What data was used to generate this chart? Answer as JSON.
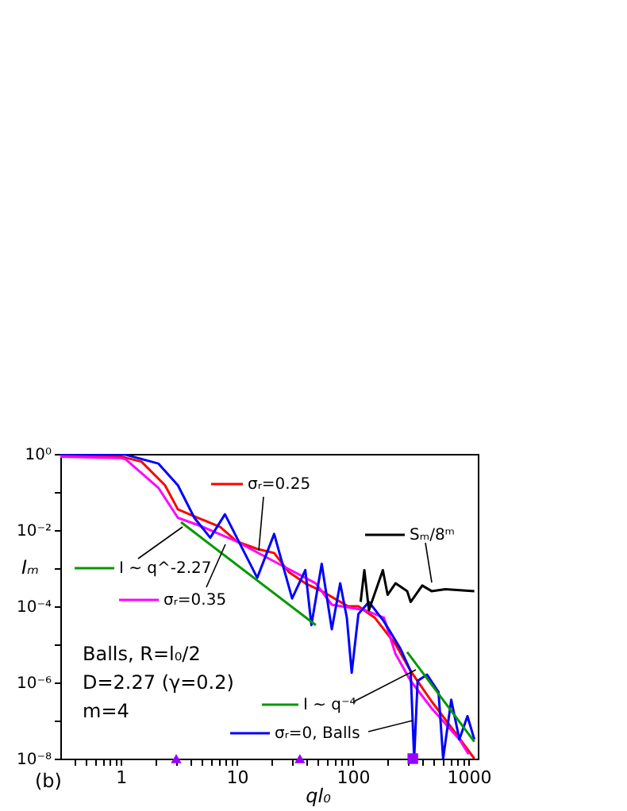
{
  "chart_data": {
    "type": "line",
    "xlabel": "ql₀",
    "ylabel": "Iₘ",
    "log": "xy",
    "grid": false,
    "legend": "left",
    "xlim": [
      0.3,
      1200
    ],
    "ylim": [
      1e-08,
      1
    ],
    "xticks": [
      {
        "value": 0.4,
        "label": null
      },
      {
        "value": 0.5,
        "label": null
      },
      {
        "value": 0.6,
        "label": null
      },
      {
        "value": 0.7,
        "label": null
      },
      {
        "value": 0.8,
        "label": null
      },
      {
        "value": 0.9,
        "label": null
      },
      1,
      {
        "value": 2,
        "label": null
      },
      {
        "value": 3,
        "label": null
      },
      {
        "value": 4,
        "label": null
      },
      {
        "value": 5,
        "label": null
      },
      {
        "value": 6,
        "label": null
      },
      {
        "value": 7,
        "label": null
      },
      {
        "value": 8,
        "label": null
      },
      {
        "value": 9,
        "label": null
      },
      10,
      {
        "value": 20,
        "label": null
      },
      {
        "value": 30,
        "label": null
      },
      {
        "value": 40,
        "label": null
      },
      {
        "value": 50,
        "label": null
      },
      {
        "value": 60,
        "label": null
      },
      {
        "value": 70,
        "label": null
      },
      {
        "value": 80,
        "label": null
      },
      {
        "value": 90,
        "label": null
      },
      100,
      {
        "value": 200,
        "label": null
      },
      {
        "value": 300,
        "label": null
      },
      {
        "value": 400,
        "label": null
      },
      {
        "value": 500,
        "label": null
      },
      {
        "value": 600,
        "label": null
      },
      {
        "value": 700,
        "label": null
      },
      {
        "value": 800,
        "label": null
      },
      {
        "value": 900,
        "label": null
      },
      1000
    ],
    "yticks": [
      {
        "value": 1e-08,
        "label": "10⁻⁸"
      },
      {
        "value": 1e-07,
        "label": null
      },
      {
        "value": 1e-06,
        "label": "10⁻⁶"
      },
      {
        "value": 1e-05,
        "label": null
      },
      {
        "value": 0.0001,
        "label": "10⁻⁴"
      },
      {
        "value": 0.001,
        "label": null
      },
      {
        "value": 0.01,
        "label": "10⁻²"
      },
      {
        "value": 0.1,
        "label": null
      },
      {
        "value": 1,
        "label": "10⁰"
      }
    ],
    "series": [
      {
        "name": "σᵣ=0.25",
        "color": "#ff0000",
        "x": [
          0.3,
          1,
          1.5,
          2.4,
          3.1,
          4.8,
          7.2,
          10,
          15,
          21,
          28,
          39,
          54,
          91,
          112,
          155,
          234,
          316,
          479,
          759,
          1120
        ],
        "values": [
          0.9,
          0.85,
          0.63,
          0.15,
          0.035,
          0.02,
          0.012,
          0.005,
          0.0032,
          0.0025,
          0.0008,
          0.0004,
          0.00025,
          0.0001,
          0.0001,
          5e-05,
          1e-05,
          2e-06,
          3.2e-07,
          5e-08,
          1e-08
        ]
      },
      {
        "name": "σᵣ=0.35",
        "color": "#ff00ff",
        "x": [
          0.3,
          1,
          1.1,
          2.1,
          3.1,
          4.8,
          10,
          23,
          48,
          66,
          126,
          186,
          234,
          316,
          479,
          832,
          1000
        ],
        "values": [
          0.85,
          0.78,
          0.72,
          0.13,
          0.021,
          0.013,
          0.005,
          0.0013,
          0.0004,
          0.00011,
          8e-05,
          5e-05,
          5.6e-06,
          1.1e-06,
          2.1e-07,
          3.2e-08,
          1.3e-08
        ]
      },
      {
        "name": "σᵣ=0, Balls",
        "color": "#0000ff",
        "x": [
          0.3,
          1.1,
          2.1,
          3.1,
          4.3,
          5.9,
          7.9,
          15,
          21,
          30,
          39,
          44,
          54,
          66,
          78,
          89,
          98,
          112,
          138,
          186,
          257,
          316,
          339,
          363,
          437,
          550,
          603,
          708,
          832,
          977,
          1120
        ],
        "values": [
          1,
          0.95,
          0.56,
          0.15,
          0.021,
          0.0063,
          0.026,
          0.00056,
          0.0079,
          0.00016,
          0.00089,
          3.2e-05,
          0.0013,
          2.5e-05,
          0.0004,
          5e-05,
          1.8e-06,
          6.3e-05,
          0.00013,
          4e-05,
          7.9e-06,
          2e-06,
          1e-08,
          1.1e-06,
          1.6e-06,
          5.6e-07,
          1e-08,
          3.5e-07,
          3.2e-08,
          1.3e-07,
          3.2e-08
        ]
      },
      {
        "name": "Sₘ/8ᵐ",
        "color": "#000000",
        "x": [
          117,
          126,
          138,
          182,
          200,
          234,
          295,
          316,
          398,
          479,
          631,
          1120
        ],
        "values": [
          0.00013,
          0.00089,
          7.9e-05,
          0.00089,
          0.0002,
          0.0004,
          0.00025,
          0.00013,
          0.00035,
          0.00025,
          0.00028,
          0.00025
        ]
      },
      {
        "name": "I ~ q^-2.27",
        "color": "#009900",
        "x": [
          3.3,
          48
        ],
        "values": [
          0.0162,
          3.2e-05
        ]
      },
      {
        "name": "I ~ q⁻⁴",
        "color": "#009900",
        "x": [
          295,
          1120
        ],
        "values": [
          6.3e-06,
          2.8e-08
        ]
      },
      {
        "type": "scatter",
        "marker": "triangle",
        "color": "#9900ff",
        "x": [
          3,
          35
        ],
        "values": [
          1e-08,
          1e-08
        ]
      },
      {
        "type": "scatter",
        "marker": "square",
        "color": "#9900ff",
        "x": [
          330
        ],
        "values": [
          1e-08
        ]
      }
    ],
    "annotations": [
      "Balls, R=l₀/2",
      "D=2.27 (γ=0.2)",
      "m=4",
      "(b)"
    ]
  }
}
